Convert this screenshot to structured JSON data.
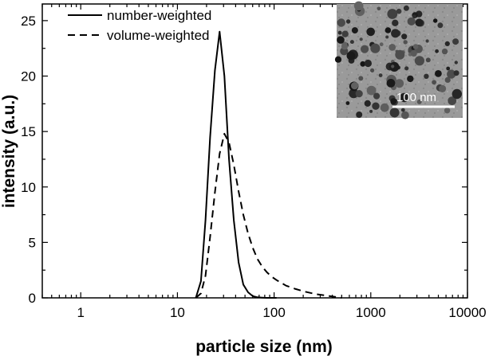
{
  "chart_data": {
    "type": "line",
    "xlabel": "particle size (nm)",
    "ylabel": "intensity (a.u.)",
    "x_scale": "log",
    "xlim": [
      0.4,
      10000
    ],
    "ylim": [
      0,
      26.5
    ],
    "x_ticks": [
      1,
      10,
      100,
      1000,
      10000
    ],
    "x_tick_labels": [
      "1",
      "10",
      "100",
      "1000",
      "10000"
    ],
    "y_ticks": [
      0,
      5,
      10,
      15,
      20,
      25
    ],
    "y_tick_labels": [
      "0",
      "5",
      "10",
      "15",
      "20",
      "25"
    ],
    "grid": false,
    "legend_position": "top-left",
    "series": [
      {
        "name": "number-weighted",
        "line_style": "solid",
        "color": "#000000",
        "x": [
          15.5,
          17.5,
          19.5,
          21.8,
          24.4,
          27.3,
          30.6,
          34.2,
          38.3,
          42.9,
          48.0,
          53.8,
          60.2,
          67.4,
          75.4,
          84.5,
          94.6,
          106
        ],
        "y": [
          0.0,
          1.5,
          7.0,
          14.5,
          20.5,
          24.0,
          20.0,
          12.5,
          7.0,
          3.2,
          1.2,
          0.5,
          0.15,
          0.05,
          0.02,
          0.0,
          0.0,
          0.0
        ]
      },
      {
        "name": "volume-weighted",
        "line_style": "dashed",
        "color": "#000000",
        "x": [
          15.5,
          17.5,
          19.5,
          21.8,
          24.4,
          27.3,
          30.6,
          34.2,
          38.3,
          42.9,
          48.0,
          53.8,
          60.2,
          67.4,
          75.4,
          84.5,
          94.6,
          106,
          133,
          167,
          210,
          265,
          333,
          420,
          500
        ],
        "y": [
          0.0,
          0.4,
          2.0,
          5.5,
          9.5,
          13.0,
          14.8,
          14.0,
          12.0,
          9.6,
          7.5,
          5.8,
          4.5,
          3.5,
          2.8,
          2.3,
          1.9,
          1.6,
          1.1,
          0.8,
          0.55,
          0.35,
          0.22,
          0.1,
          0.0
        ]
      }
    ],
    "inset": {
      "type": "image",
      "description_for_render_only": "",
      "scale_bar_label": "100 nm"
    }
  }
}
